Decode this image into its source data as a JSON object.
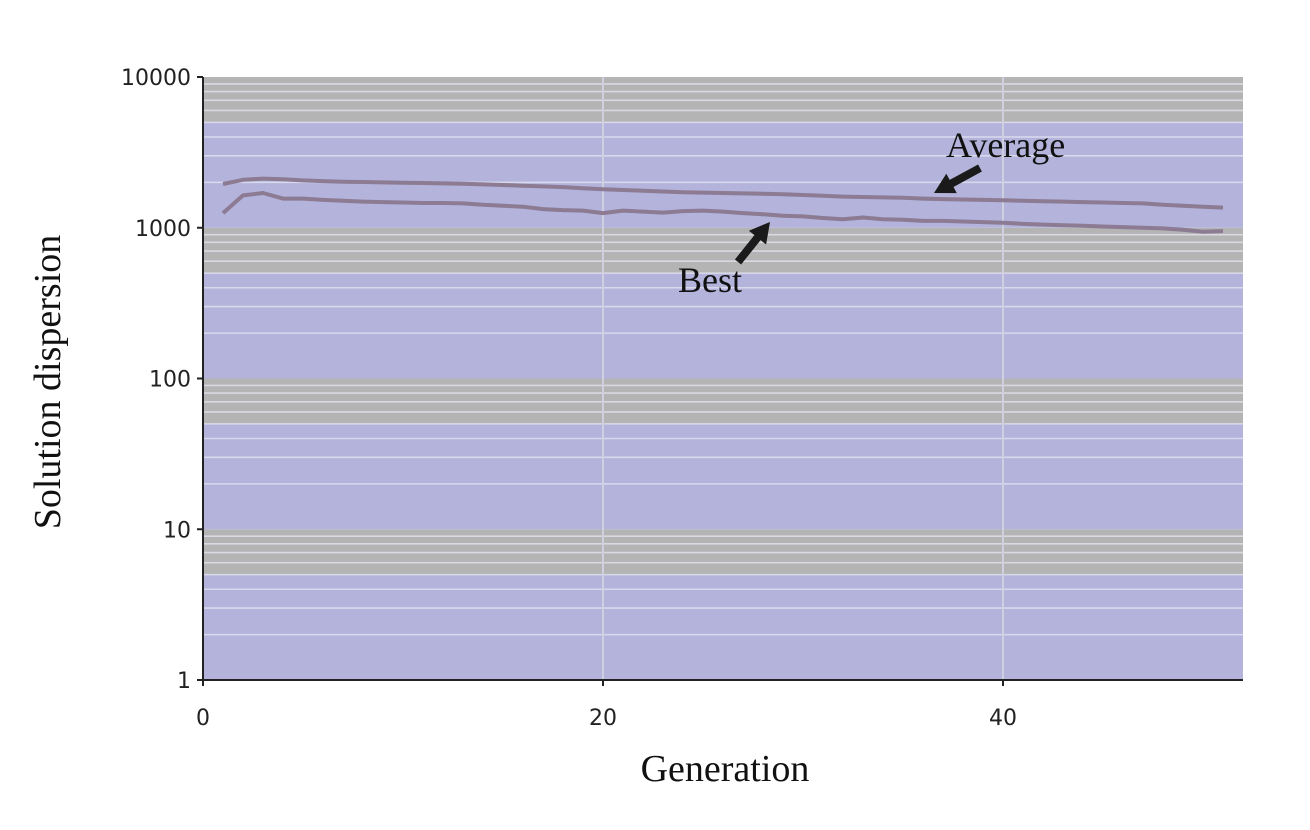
{
  "chart_data": {
    "type": "line",
    "title": "",
    "xlabel": "Generation",
    "ylabel": "Solution dispersion",
    "x_ticks": [
      "0",
      "20",
      "40"
    ],
    "y_ticks": [
      "1",
      "10",
      "100",
      "1000",
      "10000"
    ],
    "xlim": [
      0,
      52
    ],
    "ylim": [
      1,
      10000
    ],
    "y_scale": "log",
    "grid": true,
    "legend": "none",
    "x": [
      1,
      2,
      3,
      4,
      5,
      6,
      7,
      8,
      9,
      10,
      11,
      12,
      13,
      14,
      15,
      16,
      17,
      18,
      19,
      20,
      21,
      22,
      23,
      24,
      25,
      26,
      27,
      28,
      29,
      30,
      31,
      32,
      33,
      34,
      35,
      36,
      37,
      38,
      39,
      40,
      41,
      42,
      43,
      44,
      45,
      46,
      47,
      48,
      49,
      50,
      51
    ],
    "series": [
      {
        "name": "Average",
        "color": "#8c7b92",
        "values": [
          1950,
          2080,
          2120,
          2100,
          2060,
          2040,
          2020,
          2010,
          2000,
          1990,
          1980,
          1970,
          1960,
          1940,
          1920,
          1900,
          1880,
          1860,
          1830,
          1800,
          1780,
          1760,
          1740,
          1720,
          1710,
          1700,
          1690,
          1680,
          1670,
          1650,
          1630,
          1610,
          1600,
          1590,
          1580,
          1560,
          1550,
          1540,
          1530,
          1520,
          1510,
          1500,
          1490,
          1480,
          1470,
          1460,
          1450,
          1420,
          1400,
          1380,
          1360
        ]
      },
      {
        "name": "Best",
        "color": "#8c7b92",
        "values": [
          1250,
          1640,
          1700,
          1560,
          1560,
          1530,
          1510,
          1490,
          1480,
          1470,
          1460,
          1460,
          1450,
          1420,
          1400,
          1380,
          1330,
          1310,
          1300,
          1250,
          1300,
          1280,
          1260,
          1290,
          1300,
          1280,
          1250,
          1230,
          1200,
          1190,
          1160,
          1140,
          1170,
          1140,
          1130,
          1110,
          1110,
          1100,
          1090,
          1080,
          1060,
          1050,
          1040,
          1030,
          1020,
          1010,
          1000,
          990,
          970,
          940,
          950
        ]
      }
    ],
    "annotations": [
      "Average",
      "Best"
    ],
    "colors": {
      "band_gray": "#b4b4b4",
      "band_lavender": "#b3b3dc",
      "grid_line": "#e6e6f2",
      "axis": "#222222"
    }
  }
}
